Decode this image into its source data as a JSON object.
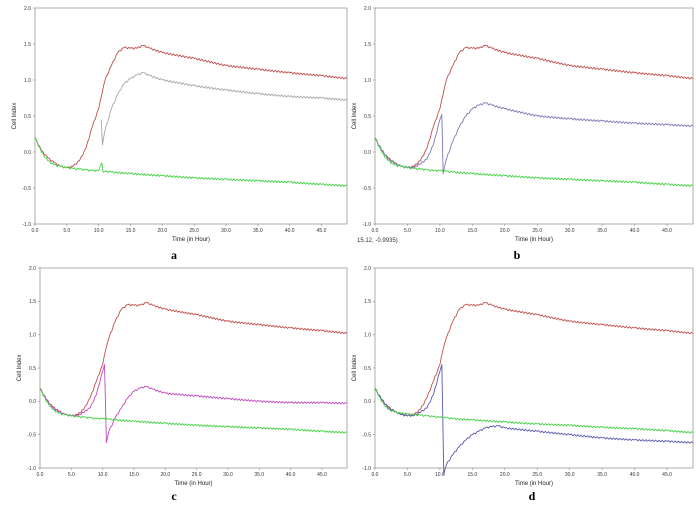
{
  "figure": {
    "panels": [
      {
        "letter": "a",
        "ylabel": "Cell Index",
        "xlabel": "Time (in Hour)",
        "readout": ""
      },
      {
        "letter": "b",
        "ylabel": "Cell Index",
        "xlabel": "Time (in Hour)",
        "readout": "15.12, -0.9935)"
      },
      {
        "letter": "c",
        "ylabel": "Cell Index",
        "xlabel": "Time (in Hour)",
        "readout": ""
      },
      {
        "letter": "d",
        "ylabel": "Cell Index",
        "xlabel": "Time (in Hour)",
        "readout": ""
      }
    ]
  },
  "chart_data": [
    {
      "type": "line",
      "panel": "a",
      "xlabel": "Time (in Hour)",
      "ylabel": "Cell Index",
      "xlim": [
        0,
        49
      ],
      "ylim": [
        -1.0,
        2.0
      ],
      "xticks": [
        "0.0",
        "5.0",
        "10.0",
        "15.0",
        "20.0",
        "25.0",
        "30.0",
        "35.0",
        "40.0",
        "45.0"
      ],
      "yticks": [
        "-1.0",
        "-0.5",
        "0.0",
        "0.5",
        "1.0",
        "1.5",
        "2.0"
      ],
      "grid": false,
      "series": [
        {
          "color": "#c0504d",
          "x": [
            0,
            1,
            2,
            3,
            4,
            5,
            6,
            7,
            8,
            9,
            10,
            10.5,
            11,
            12,
            13,
            14,
            15,
            16,
            17,
            18,
            20,
            25,
            30,
            35,
            40,
            45,
            49
          ],
          "y": [
            0.2,
            0.02,
            -0.08,
            -0.15,
            -0.2,
            -0.22,
            -0.2,
            -0.12,
            0.05,
            0.35,
            0.6,
            0.8,
            1.0,
            1.2,
            1.38,
            1.45,
            1.44,
            1.44,
            1.48,
            1.44,
            1.38,
            1.3,
            1.2,
            1.15,
            1.1,
            1.06,
            1.02
          ]
        },
        {
          "color": "#a8a8a8",
          "x": [
            10.4,
            10.6,
            11,
            12,
            13,
            14,
            15,
            16,
            17,
            18,
            20,
            25,
            30,
            35,
            40,
            45,
            49
          ],
          "y": [
            0.45,
            0.1,
            0.3,
            0.6,
            0.8,
            0.95,
            1.02,
            1.07,
            1.1,
            1.06,
            1.0,
            0.92,
            0.86,
            0.81,
            0.77,
            0.75,
            0.72
          ]
        },
        {
          "color": "#41d141",
          "x": [
            0,
            1,
            2,
            3,
            4,
            5,
            6,
            7,
            8,
            9,
            10,
            10.5,
            10.7,
            11,
            12,
            15,
            20,
            25,
            30,
            35,
            40,
            45,
            49
          ],
          "y": [
            0.2,
            0.0,
            -0.12,
            -0.18,
            -0.2,
            -0.22,
            -0.23,
            -0.24,
            -0.25,
            -0.26,
            -0.26,
            -0.15,
            -0.28,
            -0.27,
            -0.28,
            -0.3,
            -0.33,
            -0.36,
            -0.38,
            -0.4,
            -0.42,
            -0.45,
            -0.47
          ]
        }
      ]
    },
    {
      "type": "line",
      "panel": "b",
      "xlabel": "Time (in Hour)",
      "ylabel": "Cell Index",
      "xlim": [
        0,
        49
      ],
      "ylim": [
        -1.0,
        2.0
      ],
      "xticks": [
        "0.0",
        "5.0",
        "10.0",
        "15.0",
        "20.0",
        "25.0",
        "30.0",
        "35.0",
        "40.0",
        "45.0"
      ],
      "yticks": [
        "-1.0",
        "-0.5",
        "0.0",
        "0.5",
        "1.0",
        "1.5",
        "2.0"
      ],
      "grid": false,
      "series": [
        {
          "color": "#c0504d",
          "x": [
            0,
            1,
            2,
            3,
            4,
            5,
            6,
            7,
            8,
            9,
            10,
            10.5,
            11,
            12,
            13,
            14,
            15,
            16,
            17,
            18,
            20,
            25,
            30,
            35,
            40,
            45,
            49
          ],
          "y": [
            0.2,
            0.02,
            -0.08,
            -0.15,
            -0.2,
            -0.22,
            -0.2,
            -0.12,
            0.05,
            0.35,
            0.6,
            0.8,
            1.0,
            1.2,
            1.38,
            1.45,
            1.44,
            1.44,
            1.48,
            1.44,
            1.38,
            1.3,
            1.2,
            1.15,
            1.1,
            1.06,
            1.02
          ]
        },
        {
          "color": "#7a7ab5",
          "x": [
            0,
            2,
            4,
            6,
            8,
            9,
            10,
            10.3,
            10.5,
            11,
            12,
            13,
            14,
            15,
            16,
            17,
            18,
            20,
            25,
            30,
            35,
            40,
            45,
            49
          ],
          "y": [
            0.18,
            -0.1,
            -0.2,
            -0.22,
            -0.1,
            0.1,
            0.45,
            0.52,
            -0.3,
            -0.1,
            0.15,
            0.35,
            0.5,
            0.6,
            0.65,
            0.68,
            0.65,
            0.6,
            0.5,
            0.46,
            0.43,
            0.4,
            0.38,
            0.36
          ]
        },
        {
          "color": "#41d141",
          "x": [
            0,
            1,
            2,
            3,
            4,
            5,
            6,
            7,
            8,
            9,
            10,
            11,
            12,
            15,
            20,
            25,
            30,
            35,
            40,
            45,
            49
          ],
          "y": [
            0.2,
            0.0,
            -0.12,
            -0.18,
            -0.2,
            -0.22,
            -0.23,
            -0.24,
            -0.25,
            -0.26,
            -0.26,
            -0.27,
            -0.28,
            -0.3,
            -0.33,
            -0.36,
            -0.38,
            -0.4,
            -0.42,
            -0.45,
            -0.47
          ]
        }
      ]
    },
    {
      "type": "line",
      "panel": "c",
      "xlabel": "Time (in Hour)",
      "ylabel": "Cell Index",
      "xlim": [
        0,
        49
      ],
      "ylim": [
        -1.0,
        2.0
      ],
      "xticks": [
        "0.0",
        "5.0",
        "10.0",
        "15.0",
        "20.0",
        "25.0",
        "30.0",
        "35.0",
        "40.0",
        "45.0"
      ],
      "yticks": [
        "-1.0",
        "-0.5",
        "0.0",
        "0.5",
        "1.0",
        "1.5",
        "2.0"
      ],
      "grid": false,
      "series": [
        {
          "color": "#c0504d",
          "x": [
            0,
            1,
            2,
            3,
            4,
            5,
            6,
            7,
            8,
            9,
            10,
            10.5,
            11,
            12,
            13,
            14,
            15,
            16,
            17,
            18,
            20,
            25,
            30,
            35,
            40,
            45,
            49
          ],
          "y": [
            0.2,
            0.02,
            -0.08,
            -0.15,
            -0.2,
            -0.22,
            -0.2,
            -0.12,
            0.05,
            0.3,
            0.55,
            0.78,
            0.95,
            1.2,
            1.38,
            1.45,
            1.44,
            1.44,
            1.48,
            1.44,
            1.38,
            1.3,
            1.2,
            1.15,
            1.1,
            1.06,
            1.02
          ]
        },
        {
          "color": "#c04ac0",
          "x": [
            0,
            2,
            4,
            6,
            8,
            9,
            10,
            10.3,
            10.6,
            11,
            12,
            13,
            14,
            15,
            16,
            17,
            18,
            20,
            25,
            30,
            35,
            40,
            45,
            49
          ],
          "y": [
            0.18,
            -0.1,
            -0.2,
            -0.22,
            -0.1,
            0.1,
            0.45,
            0.55,
            -0.62,
            -0.45,
            -0.25,
            -0.1,
            0.05,
            0.15,
            0.2,
            0.22,
            0.18,
            0.12,
            0.08,
            0.04,
            0.0,
            -0.02,
            -0.02,
            -0.03
          ]
        },
        {
          "color": "#41d141",
          "x": [
            0,
            1,
            2,
            3,
            4,
            5,
            6,
            7,
            8,
            9,
            10,
            11,
            12,
            15,
            20,
            25,
            30,
            35,
            40,
            45,
            49
          ],
          "y": [
            0.2,
            0.0,
            -0.12,
            -0.18,
            -0.2,
            -0.22,
            -0.23,
            -0.24,
            -0.25,
            -0.26,
            -0.26,
            -0.27,
            -0.28,
            -0.3,
            -0.33,
            -0.36,
            -0.38,
            -0.4,
            -0.42,
            -0.45,
            -0.47
          ]
        }
      ]
    },
    {
      "type": "line",
      "panel": "d",
      "xlabel": "Time (in Hour)",
      "ylabel": "Cell Index",
      "xlim": [
        0,
        49
      ],
      "ylim": [
        -1.0,
        2.0
      ],
      "xticks": [
        "0.0",
        "5.0",
        "10.0",
        "15.0",
        "20.0",
        "25.0",
        "30.0",
        "35.0",
        "40.0",
        "45.0"
      ],
      "yticks": [
        "-1.0",
        "-0.5",
        "0.0",
        "0.5",
        "1.0",
        "1.5",
        "2.0"
      ],
      "grid": false,
      "series": [
        {
          "color": "#c0504d",
          "x": [
            0,
            1,
            2,
            3,
            4,
            5,
            6,
            7,
            8,
            9,
            10,
            10.5,
            11,
            12,
            13,
            14,
            15,
            16,
            17,
            18,
            20,
            25,
            30,
            35,
            40,
            45,
            49
          ],
          "y": [
            0.2,
            0.02,
            -0.08,
            -0.15,
            -0.2,
            -0.22,
            -0.2,
            -0.12,
            0.05,
            0.3,
            0.55,
            0.78,
            0.95,
            1.2,
            1.38,
            1.45,
            1.44,
            1.44,
            1.48,
            1.44,
            1.38,
            1.3,
            1.2,
            1.15,
            1.1,
            1.06,
            1.02
          ]
        },
        {
          "color": "#5a5ab0",
          "x": [
            0,
            2,
            4,
            6,
            8,
            9,
            10,
            10.3,
            10.6,
            11,
            12,
            13,
            14,
            15,
            16,
            17,
            18,
            19,
            20,
            25,
            30,
            35,
            40,
            45,
            49
          ],
          "y": [
            0.18,
            -0.1,
            -0.2,
            -0.22,
            -0.1,
            0.1,
            0.45,
            0.55,
            -1.1,
            -0.95,
            -0.8,
            -0.68,
            -0.58,
            -0.5,
            -0.45,
            -0.4,
            -0.38,
            -0.37,
            -0.4,
            -0.45,
            -0.5,
            -0.55,
            -0.58,
            -0.6,
            -0.62
          ]
        },
        {
          "color": "#41d141",
          "x": [
            0,
            1,
            2,
            3,
            4,
            5,
            6,
            7,
            8,
            9,
            10,
            11,
            12,
            15,
            20,
            25,
            30,
            35,
            40,
            45,
            49
          ],
          "y": [
            0.2,
            0.0,
            -0.12,
            -0.16,
            -0.18,
            -0.19,
            -0.2,
            -0.21,
            -0.22,
            -0.23,
            -0.24,
            -0.25,
            -0.26,
            -0.28,
            -0.31,
            -0.34,
            -0.36,
            -0.39,
            -0.41,
            -0.44,
            -0.47
          ]
        }
      ]
    }
  ]
}
